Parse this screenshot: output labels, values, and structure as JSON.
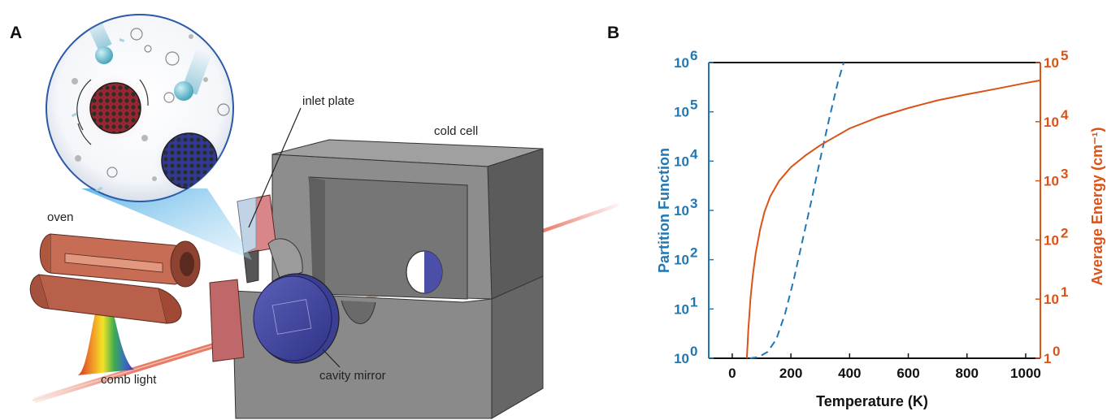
{
  "panels": {
    "a": "A",
    "b": "B"
  },
  "diagram": {
    "labels": {
      "inlet_plate": "inlet plate",
      "cold_cell": "cold cell",
      "oven": "oven",
      "cavity_mirror": "cavity mirror",
      "comb_light": "comb light"
    }
  },
  "chart_data": {
    "type": "line",
    "xlabel": "Temperature (K)",
    "ylabel": "Partition Function",
    "ylabel_right": "Average Energy (cm⁻¹)",
    "xlim": [
      -80,
      1050
    ],
    "ylim": [
      0,
      6
    ],
    "ylim_right": [
      0,
      5
    ],
    "yscale": "log",
    "x_ticks": [
      "0",
      "200",
      "400",
      "600",
      "800",
      "1000"
    ],
    "y_ticks_left": [
      {
        "base": "10",
        "exp": "0"
      },
      {
        "base": "10",
        "exp": "1"
      },
      {
        "base": "10",
        "exp": "2"
      },
      {
        "base": "10",
        "exp": "3"
      },
      {
        "base": "10",
        "exp": "4"
      },
      {
        "base": "10",
        "exp": "5"
      },
      {
        "base": "10",
        "exp": "6"
      }
    ],
    "y_ticks_right": [
      {
        "base": "1",
        "exp": "0"
      },
      {
        "base": "10",
        "exp": "1"
      },
      {
        "base": "10",
        "exp": "2"
      },
      {
        "base": "10",
        "exp": "3"
      },
      {
        "base": "10",
        "exp": "4"
      },
      {
        "base": "10",
        "exp": "5"
      }
    ],
    "colors": {
      "left_axis": "#1f77b4",
      "right_axis": "#d95319",
      "axis": "#111111"
    },
    "series": [
      {
        "axis": "left",
        "style": "dashed",
        "color": "#1f77b4",
        "x": [
          60,
          90,
          120,
          150,
          180,
          210,
          240,
          270,
          300,
          330,
          360,
          380
        ],
        "y": [
          1.0,
          1.06,
          1.34,
          2.4,
          8.0,
          40,
          250,
          1600,
          11000,
          70000,
          400000,
          1000000
        ]
      },
      {
        "axis": "right",
        "style": "solid",
        "color": "#d95319",
        "x": [
          50,
          55,
          62,
          70,
          80,
          95,
          110,
          130,
          160,
          200,
          250,
          300,
          400,
          500,
          600,
          700,
          800,
          900,
          1000,
          1050
        ],
        "y": [
          1,
          3,
          10,
          25,
          60,
          150,
          300,
          550,
          1000,
          1700,
          2700,
          4000,
          7700,
          12000,
          17000,
          23000,
          29000,
          36000,
          45000,
          50000
        ]
      }
    ]
  }
}
